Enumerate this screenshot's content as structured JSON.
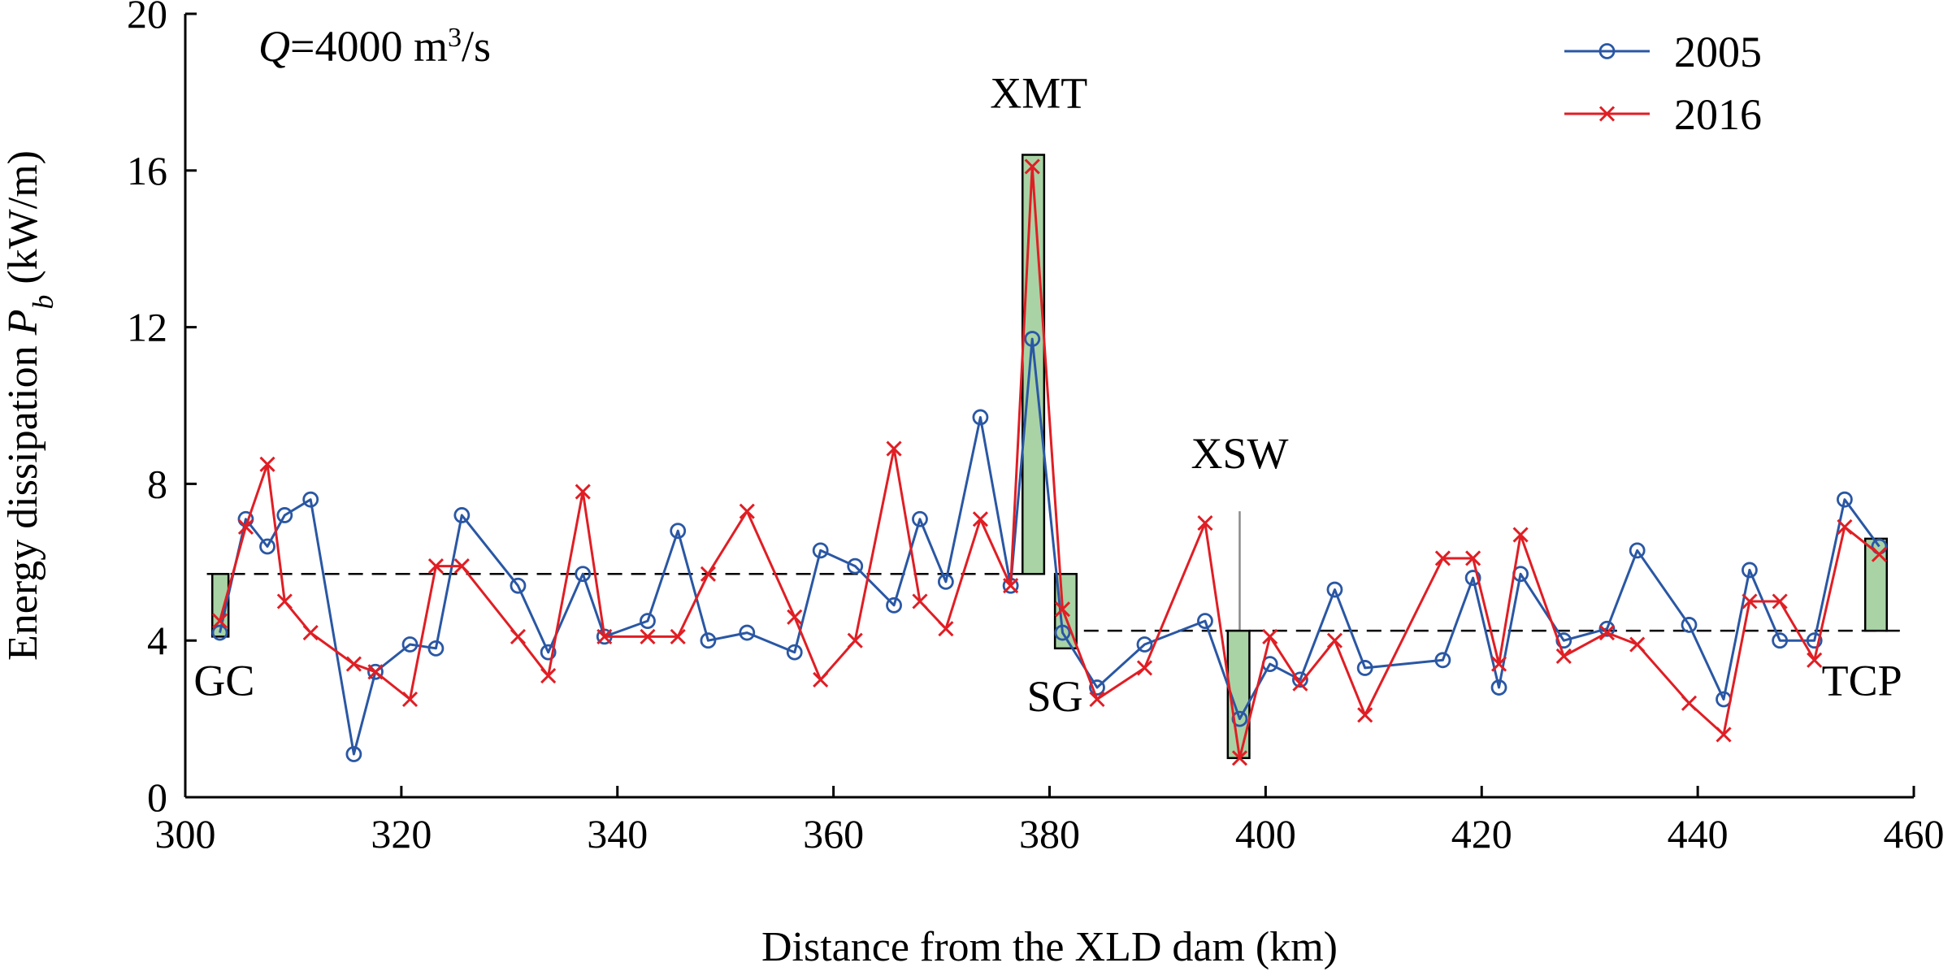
{
  "chart_data": {
    "type": "line",
    "title": "",
    "xlabel": "Distance from the XLD dam (km)",
    "ylabel": {
      "main": "Energy dissipation ",
      "symbol": "P",
      "subscript": "b",
      "unit": " (kW/m)"
    },
    "xlim": [
      300,
      460
    ],
    "ylim": [
      0,
      20
    ],
    "xticks": [
      300,
      320,
      340,
      360,
      380,
      400,
      420,
      440,
      460
    ],
    "yticks": [
      0,
      4,
      8,
      12,
      16,
      20
    ],
    "grid": false,
    "legend_position": "top-right",
    "condition": {
      "symbol": "Q",
      "text": "=4000 m",
      "sup": "3",
      "tail": "/s"
    },
    "series": [
      {
        "name": "2005",
        "color": "#2a57a4",
        "marker": "circle",
        "x": [
          303.2,
          305.6,
          307.6,
          309.2,
          311.6,
          315.6,
          317.6,
          320.8,
          323.2,
          325.6,
          330.8,
          333.6,
          336.8,
          338.8,
          342.8,
          345.6,
          348.4,
          352.0,
          356.4,
          358.8,
          362.0,
          365.6,
          368.0,
          370.4,
          373.6,
          376.4,
          378.4,
          381.2,
          384.4,
          388.8,
          394.4,
          397.6,
          400.4,
          403.2,
          406.4,
          409.2,
          416.4,
          419.2,
          421.6,
          423.6,
          427.6,
          431.6,
          434.4,
          439.2,
          442.4,
          444.8,
          447.6,
          450.8,
          453.6,
          456.8
        ],
        "values": [
          4.2,
          7.1,
          6.4,
          7.2,
          7.6,
          1.1,
          3.2,
          3.9,
          3.8,
          7.2,
          5.4,
          3.7,
          5.7,
          4.1,
          4.5,
          6.8,
          4.0,
          4.2,
          3.7,
          6.3,
          5.9,
          4.9,
          7.1,
          5.5,
          9.7,
          5.4,
          11.7,
          4.2,
          2.8,
          3.9,
          4.5,
          2.0,
          3.4,
          3.0,
          5.3,
          3.3,
          3.5,
          5.6,
          2.8,
          5.7,
          4.0,
          4.3,
          6.3,
          4.4,
          2.5,
          5.8,
          4.0,
          4.0,
          7.6,
          6.4
        ]
      },
      {
        "name": "2016",
        "color": "#e01e24",
        "marker": "x",
        "x": [
          303.2,
          305.6,
          307.6,
          309.2,
          311.6,
          315.6,
          317.6,
          320.8,
          323.2,
          325.6,
          330.8,
          333.6,
          336.8,
          338.8,
          342.8,
          345.6,
          348.4,
          352.0,
          356.4,
          358.8,
          362.0,
          365.6,
          368.0,
          370.4,
          373.6,
          376.4,
          378.4,
          381.2,
          384.4,
          388.8,
          394.4,
          397.6,
          400.4,
          403.2,
          406.4,
          409.2,
          416.4,
          419.2,
          421.6,
          423.6,
          427.6,
          431.6,
          434.4,
          439.2,
          442.4,
          444.8,
          447.6,
          450.8,
          453.6,
          456.8
        ],
        "values": [
          4.5,
          6.9,
          8.5,
          5.0,
          4.2,
          3.4,
          3.2,
          2.5,
          5.9,
          5.9,
          4.1,
          3.1,
          7.8,
          4.1,
          4.1,
          4.1,
          5.7,
          7.3,
          4.6,
          3.0,
          4.0,
          8.9,
          5.0,
          4.3,
          7.1,
          5.4,
          16.1,
          4.8,
          2.5,
          3.3,
          7.0,
          1.0,
          4.1,
          2.9,
          4.0,
          2.1,
          6.1,
          6.1,
          3.4,
          6.7,
          3.6,
          4.2,
          3.9,
          2.4,
          1.6,
          5.0,
          5.0,
          3.5,
          6.9,
          6.2
        ]
      }
    ],
    "reference_lines": [
      {
        "name": "mean-upstream",
        "x": [
          302,
          379
        ],
        "y": 5.7
      },
      {
        "name": "mean-downstream",
        "x": [
          381,
          459
        ],
        "y": 4.25
      }
    ],
    "highlight_bars": [
      {
        "label": "GC",
        "x": [
          302.5,
          304.0
        ],
        "y": [
          4.1,
          5.7
        ]
      },
      {
        "label": "XMT",
        "x": [
          377.5,
          379.5
        ],
        "y": [
          5.7,
          16.4
        ]
      },
      {
        "label": "SG",
        "x": [
          380.5,
          382.5
        ],
        "y": [
          3.8,
          5.7
        ]
      },
      {
        "label": "XSW",
        "x": [
          396.5,
          398.5
        ],
        "y": [
          1.0,
          4.25
        ]
      },
      {
        "label": "TCP",
        "x": [
          455.5,
          457.5
        ],
        "y": [
          4.25,
          6.6
        ]
      }
    ],
    "pointer_line": {
      "label": "XSW",
      "x": 397.6,
      "y": [
        4.25,
        7.3
      ]
    },
    "annotations": [
      {
        "text": "GC",
        "x": 303.6,
        "y": 2.6
      },
      {
        "text": "XMT",
        "x": 379.0,
        "y": 17.6
      },
      {
        "text": "XSW",
        "x": 397.6,
        "y": 8.4
      },
      {
        "text": "SG",
        "x": 380.5,
        "y": 2.2
      },
      {
        "text": "TCP",
        "x": 455.2,
        "y": 2.6
      }
    ],
    "colors": {
      "highlight_fill": "#a9d3a5",
      "highlight_stroke": "#000000",
      "axis": "#000000"
    }
  }
}
